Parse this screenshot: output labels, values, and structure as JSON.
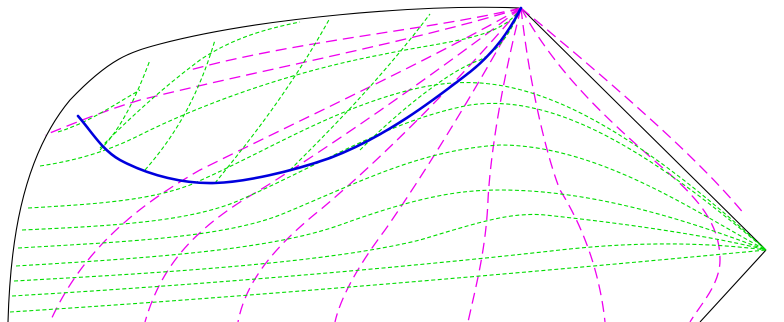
{
  "diagram": {
    "colors": {
      "boundary": "#000000",
      "family_a": "#00dd00",
      "family_b": "#ee00ee",
      "highlight": "#0000dd"
    },
    "families": [
      {
        "id": "family_a",
        "style": "short-dash",
        "count": 15
      },
      {
        "id": "family_b",
        "style": "long-dash",
        "count": 10
      }
    ],
    "highlight_curve": {
      "style": "solid",
      "count": 1
    }
  }
}
